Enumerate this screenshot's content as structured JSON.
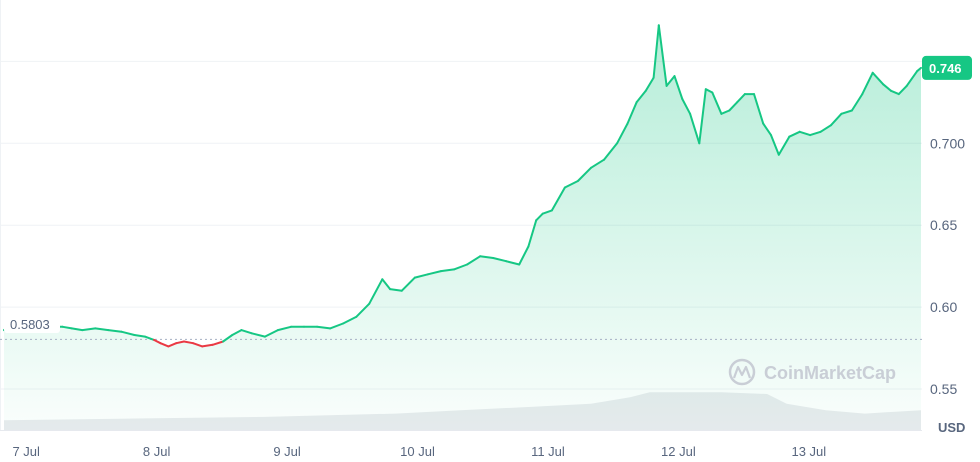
{
  "chart_data": {
    "type": "area",
    "ylim": [
      0.525,
      0.785
    ],
    "yticks": [
      {
        "value": 0.55,
        "label": "0.55"
      },
      {
        "value": 0.6,
        "label": "0.60"
      },
      {
        "value": 0.65,
        "label": "0.65"
      },
      {
        "value": 0.7,
        "label": "0.700"
      }
    ],
    "xlim": [
      0,
      7.03
    ],
    "xticks": [
      {
        "x": 0.17,
        "label": "7 Jul"
      },
      {
        "x": 1.17,
        "label": "8 Jul"
      },
      {
        "x": 2.17,
        "label": "9 Jul"
      },
      {
        "x": 3.17,
        "label": "10 Jul"
      },
      {
        "x": 4.17,
        "label": "11 Jul"
      },
      {
        "x": 5.17,
        "label": "12 Jul"
      },
      {
        "x": 6.17,
        "label": "13 Jul"
      }
    ],
    "y_unit": "USD",
    "baseline": {
      "value": 0.5803,
      "label": "0.5803"
    },
    "current": {
      "value": 0.746,
      "label": "0.746"
    },
    "watermark": "CoinMarketCap",
    "colors": {
      "up": "#16c784",
      "down": "#ea3943",
      "grid": "#eff2f5",
      "badge": "#16c784",
      "volume": "#dfe2e7"
    },
    "series": [
      {
        "x": [
          0,
          0.05,
          0.12,
          0.22,
          0.3,
          0.38,
          0.45,
          0.52,
          0.6,
          0.7,
          0.8,
          0.9,
          1.0,
          1.08,
          1.15,
          1.2,
          1.26,
          1.32,
          1.38,
          1.45,
          1.52,
          1.6,
          1.68,
          1.75,
          1.82,
          1.9,
          2.0,
          2.1,
          2.2,
          2.3,
          2.4,
          2.5,
          2.6,
          2.7,
          2.8,
          2.9,
          2.96,
          3.05,
          3.15,
          3.25,
          3.35,
          3.45,
          3.55,
          3.65,
          3.75,
          3.85,
          3.95,
          4.02,
          4.08,
          4.13,
          4.2,
          4.3,
          4.4,
          4.5,
          4.6,
          4.7,
          4.78,
          4.85,
          4.92,
          4.98,
          5.02,
          5.08,
          5.14,
          5.2,
          5.26,
          5.33,
          5.38,
          5.43,
          5.5,
          5.56,
          5.62,
          5.68,
          5.75,
          5.82,
          5.88,
          5.94,
          6.02,
          6.1,
          6.18,
          6.26,
          6.34,
          6.42,
          6.5,
          6.58,
          6.66,
          6.74,
          6.8,
          6.86,
          6.92,
          7.0,
          7.03
        ],
        "y": [
          0.586,
          0.589,
          0.586,
          0.585,
          0.59,
          0.588,
          0.588,
          0.587,
          0.586,
          0.587,
          0.586,
          0.585,
          0.583,
          0.582,
          0.58,
          0.578,
          0.576,
          0.578,
          0.579,
          0.578,
          0.576,
          0.577,
          0.579,
          0.583,
          0.586,
          0.584,
          0.582,
          0.586,
          0.588,
          0.588,
          0.588,
          0.587,
          0.59,
          0.594,
          0.602,
          0.617,
          0.611,
          0.61,
          0.618,
          0.62,
          0.622,
          0.623,
          0.626,
          0.631,
          0.63,
          0.628,
          0.626,
          0.637,
          0.653,
          0.657,
          0.659,
          0.673,
          0.677,
          0.685,
          0.69,
          0.7,
          0.712,
          0.725,
          0.732,
          0.74,
          0.772,
          0.735,
          0.741,
          0.727,
          0.718,
          0.7,
          0.733,
          0.731,
          0.718,
          0.72,
          0.725,
          0.73,
          0.73,
          0.712,
          0.705,
          0.693,
          0.704,
          0.707,
          0.705,
          0.707,
          0.711,
          0.718,
          0.72,
          0.73,
          0.743,
          0.736,
          0.732,
          0.73,
          0.735,
          0.744,
          0.746
        ]
      }
    ],
    "volume_ribbon": {
      "x": [
        0,
        1.0,
        2.0,
        3.0,
        3.5,
        4.0,
        4.5,
        4.8,
        4.95,
        5.5,
        5.85,
        6.0,
        6.3,
        6.6,
        6.8,
        7.03
      ],
      "y": [
        0.531,
        0.532,
        0.533,
        0.535,
        0.537,
        0.539,
        0.541,
        0.545,
        0.548,
        0.548,
        0.547,
        0.541,
        0.537,
        0.535,
        0.536,
        0.537
      ]
    }
  }
}
